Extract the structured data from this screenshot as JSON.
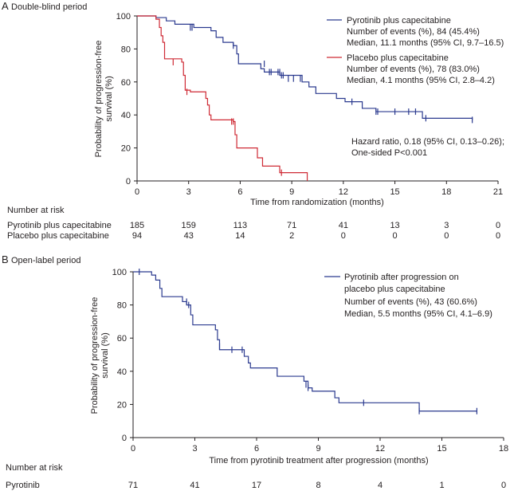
{
  "chart_data": [
    {
      "type": "line",
      "panel": "A",
      "panel_title": "Double-blind period",
      "xlabel": "Time from randomization (months)",
      "ylabel": "Probability of progression-free survival (%)",
      "ylabel_lines": [
        "Probability of progression-free",
        "survival (%)"
      ],
      "xlim": [
        0,
        21
      ],
      "ylim": [
        0,
        100
      ],
      "xticks": [
        "0",
        "3",
        "6",
        "9",
        "12",
        "15",
        "18",
        "21"
      ],
      "yticks": [
        "0",
        "20",
        "40",
        "60",
        "80",
        "100"
      ],
      "series": [
        {
          "name": "Pyrotinib plus capecitabine",
          "color": "#2b3a8f",
          "steps": [
            [
              0,
              100
            ],
            [
              1.1,
              99
            ],
            [
              1.7,
              97
            ],
            [
              2.2,
              95
            ],
            [
              3.3,
              93
            ],
            [
              4.3,
              91
            ],
            [
              4.6,
              87
            ],
            [
              5.0,
              84
            ],
            [
              5.6,
              82
            ],
            [
              5.8,
              77
            ],
            [
              5.9,
              71
            ],
            [
              7.0,
              71
            ],
            [
              7.2,
              68
            ],
            [
              7.4,
              66
            ],
            [
              8.3,
              64
            ],
            [
              9.6,
              60
            ],
            [
              10.0,
              57
            ],
            [
              10.4,
              53
            ],
            [
              11.6,
              50
            ],
            [
              12.1,
              48
            ],
            [
              13.1,
              44
            ],
            [
              13.9,
              42
            ],
            [
              16.6,
              38
            ],
            [
              19.5,
              37
            ]
          ],
          "censors": [
            [
              3.1,
              93
            ],
            [
              3.2,
              93
            ],
            [
              5.6,
              82
            ],
            [
              7.4,
              71
            ],
            [
              7.7,
              66
            ],
            [
              7.8,
              66
            ],
            [
              8.2,
              66
            ],
            [
              8.3,
              66
            ],
            [
              8.4,
              64
            ],
            [
              8.5,
              64
            ],
            [
              8.8,
              62
            ],
            [
              9.1,
              62
            ],
            [
              9.5,
              62
            ],
            [
              12.5,
              48
            ],
            [
              13.9,
              42
            ],
            [
              14.0,
              42
            ],
            [
              15.0,
              42
            ],
            [
              15.8,
              42
            ],
            [
              16.2,
              42
            ],
            [
              16.8,
              38
            ],
            [
              19.5,
              37
            ]
          ]
        },
        {
          "name": "Placebo plus capecitabine",
          "color": "#cf2a35",
          "steps": [
            [
              0,
              100
            ],
            [
              1.1,
              98
            ],
            [
              1.3,
              93
            ],
            [
              1.4,
              88
            ],
            [
              1.5,
              84
            ],
            [
              1.6,
              74
            ],
            [
              2.6,
              72
            ],
            [
              2.7,
              64
            ],
            [
              2.8,
              55
            ],
            [
              3.1,
              54
            ],
            [
              4.0,
              50
            ],
            [
              4.1,
              46
            ],
            [
              4.2,
              40
            ],
            [
              4.3,
              37
            ],
            [
              5.6,
              36
            ],
            [
              5.7,
              28
            ],
            [
              5.8,
              20
            ],
            [
              7.0,
              14
            ],
            [
              7.3,
              9
            ],
            [
              8.3,
              5
            ],
            [
              9.9,
              0
            ]
          ],
          "censors": [
            [
              2.1,
              72
            ],
            [
              2.9,
              54
            ],
            [
              5.5,
              36
            ],
            [
              5.6,
              36
            ],
            [
              8.4,
              5
            ]
          ]
        }
      ],
      "legend": [
        {
          "label": "Pyrotinib plus capecitabine",
          "line1": "Number of events (%), 84 (45.4%)",
          "line2": "Median, 11.1 months (95% CI, 9.7–16.5)"
        },
        {
          "label": "Placebo plus capecitabine",
          "line1": "Number of events (%), 78 (83.0%)",
          "line2": "Median, 4.1 months (95% CI, 2.8–4.2)"
        }
      ],
      "annotation": [
        "Hazard ratio, 0.18 (95% CI, 0.13–0.26);",
        "One-sided P<0.001"
      ],
      "legend_position": "top-right",
      "risk_table": {
        "title": "Number at risk",
        "rows": [
          {
            "label": "Pyrotinib plus capecitabine",
            "values": [
              "185",
              "159",
              "113",
              "71",
              "41",
              "13",
              "3",
              "0"
            ]
          },
          {
            "label": "Placebo plus capecitabine",
            "values": [
              "94",
              "43",
              "14",
              "2",
              "0",
              "0",
              "0",
              "0"
            ]
          }
        ]
      }
    },
    {
      "type": "line",
      "panel": "B",
      "panel_title": "Open-label period",
      "xlabel": "Time from pyrotinib treatment after progression (months)",
      "ylabel": "Probability of progression-free survival (%)",
      "ylabel_lines": [
        "Probability of progression-free",
        "survival (%)"
      ],
      "xlim": [
        0,
        18
      ],
      "ylim": [
        0,
        100
      ],
      "xticks": [
        "0",
        "3",
        "6",
        "9",
        "12",
        "15",
        "18"
      ],
      "yticks": [
        "0",
        "20",
        "40",
        "60",
        "80",
        "100"
      ],
      "series": [
        {
          "name": "Pyrotinib after progression on placebo plus capecitabine",
          "color": "#2b3a8f",
          "steps": [
            [
              0,
              100
            ],
            [
              0.9,
              98
            ],
            [
              1.1,
              95
            ],
            [
              1.3,
              90
            ],
            [
              1.4,
              85
            ],
            [
              2.4,
              82
            ],
            [
              2.6,
              80
            ],
            [
              2.8,
              74
            ],
            [
              2.9,
              68
            ],
            [
              4.0,
              65
            ],
            [
              4.1,
              59
            ],
            [
              4.2,
              53
            ],
            [
              5.4,
              49
            ],
            [
              5.6,
              45
            ],
            [
              5.7,
              42
            ],
            [
              7.0,
              37
            ],
            [
              8.3,
              34
            ],
            [
              8.5,
              30
            ],
            [
              8.7,
              28
            ],
            [
              9.8,
              24
            ],
            [
              10.0,
              21
            ],
            [
              13.9,
              16
            ]
          ],
          "censors": [
            [
              0.3,
              100
            ],
            [
              2.6,
              82
            ],
            [
              2.7,
              80
            ],
            [
              4.2,
              55
            ],
            [
              4.8,
              53
            ],
            [
              5.3,
              53
            ],
            [
              8.4,
              32
            ],
            [
              8.5,
              30
            ],
            [
              11.2,
              21
            ],
            [
              13.9,
              16
            ],
            [
              16.7,
              16
            ]
          ]
        }
      ],
      "legend": [
        {
          "label": "Pyrotinib after progression on",
          "label2": "placebo plus capecitabine",
          "line1": "Number of events (%), 43 (60.6%)",
          "line2": "Median, 5.5 months (95% CI, 4.1–6.9)"
        }
      ],
      "legend_position": "top-right",
      "risk_table": {
        "title": "Number at risk",
        "rows": [
          {
            "label": "Pyrotinib",
            "values": [
              "71",
              "41",
              "17",
              "8",
              "4",
              "1",
              "0"
            ]
          }
        ]
      }
    }
  ]
}
